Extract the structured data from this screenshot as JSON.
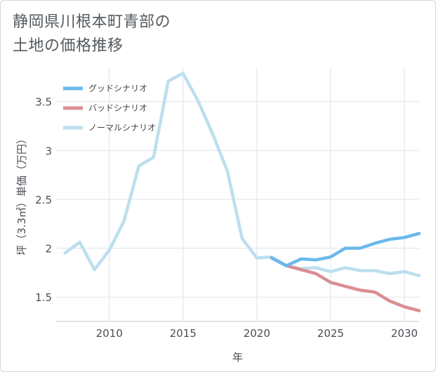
{
  "title_lines": [
    "静岡県川根本町青部の",
    "土地の価格推移"
  ],
  "colors": {
    "good": "#6bb8ec",
    "bad": "#da8e93",
    "normal": "#bcdfee",
    "grid": "#dde3ea",
    "axis": "#c6ccd3"
  },
  "chart_data": {
    "type": "line",
    "xlabel": "年",
    "ylabel": "坪（3.3㎡）単価（万円）",
    "xlim": [
      2006.4,
      2031
    ],
    "ylim": [
      1.25,
      3.85
    ],
    "xticks": [
      2010,
      2015,
      2020,
      2025,
      2030
    ],
    "yticks": [
      1.5,
      2,
      2.5,
      3,
      3.5
    ],
    "ytick_labels": [
      "1.5",
      "2",
      "2.5",
      "3",
      "3.5"
    ],
    "legend_position": "top-left",
    "series": [
      {
        "name": "グッドシナリオ",
        "key": "good",
        "x": [
          2021,
          2022,
          2023,
          2024,
          2025,
          2026,
          2027,
          2028,
          2029,
          2030,
          2031
        ],
        "y": [
          1.9,
          1.82,
          1.89,
          1.88,
          1.91,
          2.0,
          2.0,
          2.05,
          2.09,
          2.11,
          2.15
        ]
      },
      {
        "name": "バッドシナリオ",
        "key": "bad",
        "x": [
          2021,
          2022,
          2023,
          2024,
          2025,
          2026,
          2027,
          2028,
          2029,
          2030,
          2031
        ],
        "y": [
          1.9,
          1.82,
          1.78,
          1.74,
          1.65,
          1.61,
          1.57,
          1.55,
          1.46,
          1.4,
          1.36
        ]
      },
      {
        "name": "ノーマルシナリオ",
        "key": "normal",
        "x": [
          2007,
          2008,
          2009,
          2010,
          2011,
          2012,
          2013,
          2014,
          2015,
          2016,
          2017,
          2018,
          2019,
          2020,
          2021,
          2022,
          2023,
          2024,
          2025,
          2026,
          2027,
          2028,
          2029,
          2030,
          2031
        ],
        "y": [
          1.95,
          2.06,
          1.78,
          1.98,
          2.28,
          2.84,
          2.93,
          3.71,
          3.79,
          3.51,
          3.17,
          2.79,
          2.1,
          1.9,
          1.91,
          1.82,
          1.79,
          1.8,
          1.76,
          1.8,
          1.77,
          1.77,
          1.74,
          1.76,
          1.72
        ]
      }
    ]
  }
}
